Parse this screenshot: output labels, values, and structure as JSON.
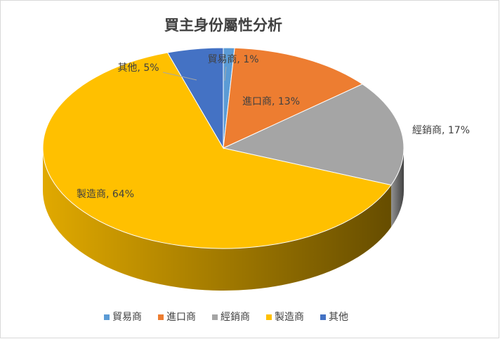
{
  "chart_data": {
    "type": "pie3d",
    "title": "買主身份屬性分析",
    "categories": [
      "貿易商",
      "進口商",
      "經銷商",
      "製造商",
      "其他"
    ],
    "values": [
      1,
      13,
      17,
      64,
      5
    ],
    "value_labels": [
      "貿易商, 1%",
      "進口商, 13%",
      "經銷商, 17%",
      "製造商, 64%",
      "其他, 5%"
    ],
    "colors": [
      "#5b9bd5",
      "#ed7d31",
      "#a5a5a5",
      "#ffc000",
      "#4472c4"
    ],
    "legend": "bottom"
  }
}
